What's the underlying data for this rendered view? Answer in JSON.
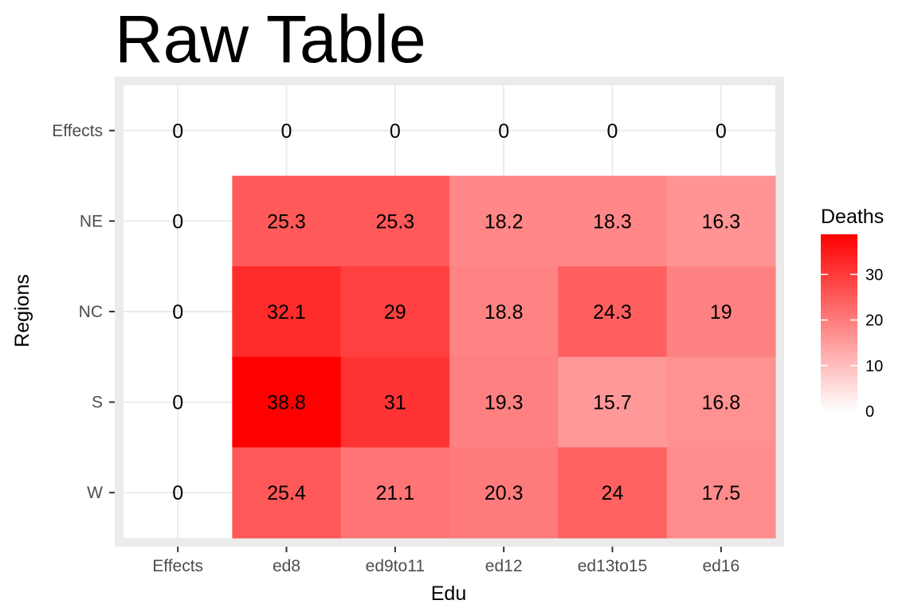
{
  "chart_data": {
    "type": "heatmap",
    "title": "Raw Table",
    "xlabel": "Edu",
    "ylabel": "Regions",
    "x_categories": [
      "Effects",
      "ed8",
      "ed9to11",
      "ed12",
      "ed13to15",
      "ed16"
    ],
    "y_categories": [
      "Effects",
      "NE",
      "NC",
      "S",
      "W"
    ],
    "values": [
      [
        0,
        0,
        0,
        0,
        0,
        0
      ],
      [
        0,
        25.3,
        25.3,
        18.2,
        18.3,
        16.3
      ],
      [
        0,
        32.1,
        29,
        18.8,
        24.3,
        19
      ],
      [
        0,
        38.8,
        31,
        19.3,
        15.7,
        16.8
      ],
      [
        0,
        25.4,
        21.1,
        20.3,
        24,
        17.5
      ]
    ],
    "fill_mask": [
      [
        false,
        false,
        false,
        false,
        false,
        false
      ],
      [
        false,
        true,
        true,
        true,
        true,
        true
      ],
      [
        false,
        true,
        true,
        true,
        true,
        true
      ],
      [
        false,
        true,
        true,
        true,
        true,
        true
      ],
      [
        false,
        true,
        true,
        true,
        true,
        true
      ]
    ],
    "legend": {
      "title": "Deaths",
      "ticks": [
        0,
        10,
        20,
        30
      ],
      "range": [
        0,
        38.8
      ],
      "low_color": "#ffffff",
      "high_color": "#ff0000"
    },
    "panel_background": "#ebebeb",
    "grid": true
  }
}
